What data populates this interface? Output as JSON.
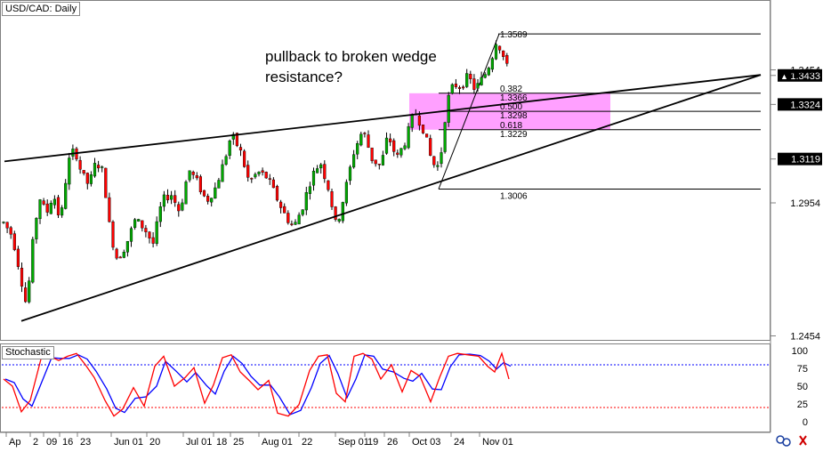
{
  "chart_data": {
    "type": "candlestick",
    "title": "USD/CAD: Daily",
    "annotation": [
      "pullback to broken wedge",
      "resistance?"
    ],
    "price_axis": {
      "ticks": [
        1.2454,
        1.2954,
        1.3119,
        1.3324,
        1.3433,
        1.3454
      ],
      "highlighted": [
        1.3119,
        1.3324,
        1.3433
      ]
    },
    "x_axis_labels": [
      "Ap",
      "2",
      "09",
      "16",
      "23",
      "Jun 01",
      "20",
      "Jul 01",
      "18",
      "25",
      "Aug 01",
      "22",
      "Sep 01",
      "19",
      "26",
      "Oct 03",
      "24",
      "Nov 01"
    ],
    "fibonacci": {
      "high": 1.3589,
      "low": 1.3006,
      "levels": [
        {
          "ratio": "0.382",
          "price": "1.3366"
        },
        {
          "ratio": "0.500",
          "price": "1.3298"
        },
        {
          "ratio": "0.618",
          "price": "1.3229"
        }
      ]
    },
    "wedge": {
      "upper_trendline": [
        {
          "date": "Apr 20",
          "price": 1.311
        },
        {
          "date": "Nov 20",
          "price": 1.3435
        }
      ],
      "lower_trendline": [
        {
          "date": "Apr 24",
          "price": 1.251
        },
        {
          "date": "Nov 20",
          "price": 1.3435
        }
      ]
    },
    "zone": {
      "from": 1.3229,
      "to": 1.3366
    },
    "stochastic": {
      "label": "Stochastic",
      "ticks": [
        "100",
        "75",
        "50",
        "25",
        "0"
      ],
      "overbought": 80,
      "oversold": 20,
      "k_color": "#ff0000",
      "d_color": "#0000ff"
    },
    "colors": {
      "bull": "#00aa00",
      "bear": "#ff0000",
      "zone": "#ff80ff",
      "trendline": "#000000"
    },
    "grid": false
  }
}
